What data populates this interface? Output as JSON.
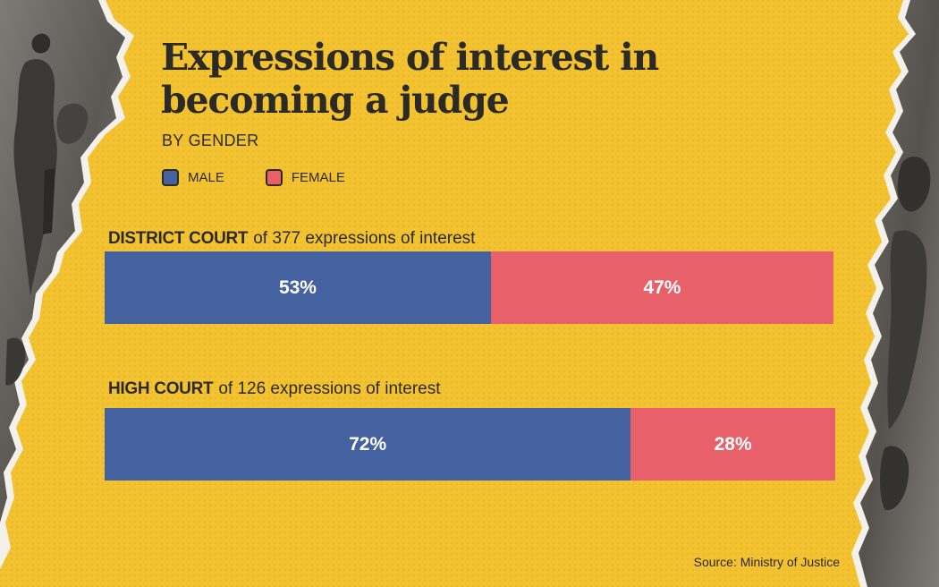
{
  "title": "Expressions of interest in becoming a judge",
  "subtitle": "BY GENDER",
  "legend": {
    "male": "MALE",
    "female": "FEMALE"
  },
  "colors": {
    "background": "#f2c230",
    "male": "#4562a0",
    "female": "#e8606a",
    "text": "#2c2a25"
  },
  "source": "Source: Ministry of Justice",
  "chart_data": {
    "type": "bar",
    "orientation": "horizontal",
    "stacked": true,
    "normalized": true,
    "title": "Expressions of interest in becoming a judge",
    "subtitle": "BY GENDER",
    "categories": [
      "DISTRICT COURT",
      "HIGH COURT"
    ],
    "category_notes": [
      "of 377 expressions of interest",
      "of 126 expressions of interest"
    ],
    "series": [
      {
        "name": "MALE",
        "values": [
          53,
          72
        ],
        "labels": [
          "53%",
          "72%"
        ]
      },
      {
        "name": "FEMALE",
        "values": [
          47,
          28
        ],
        "labels": [
          "47%",
          "28%"
        ]
      }
    ],
    "legend_position": "top-left",
    "grid": false
  }
}
